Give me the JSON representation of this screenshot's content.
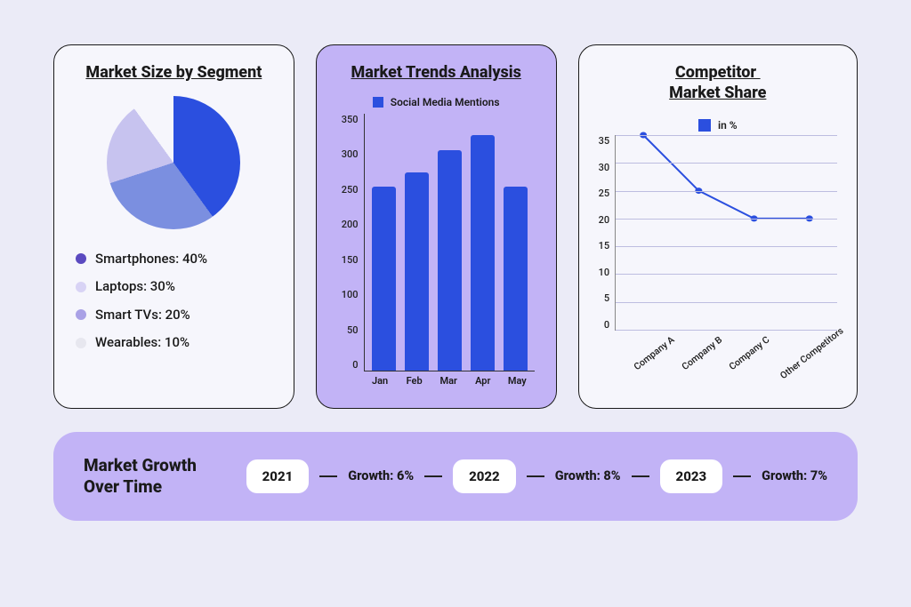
{
  "page_background": "#ebebf7",
  "pie_card": {
    "title": "Market Size by Segment",
    "background": "#f6f6fc",
    "chart": {
      "type": "pie",
      "start_angle_deg": 0,
      "slices": [
        {
          "label": "Smartphones",
          "value": 40,
          "color": "#2b4fdf"
        },
        {
          "label": "Laptops",
          "value": 30,
          "color": "#7b8fe0"
        },
        {
          "label": "Smart TVs",
          "value": 20,
          "color": "#c7c3ef"
        },
        {
          "label": "Wearables",
          "value": 10,
          "color": "#f6f6fc"
        }
      ],
      "legend_bullet_colors": [
        "#5b4ac0",
        "#d8d3f5",
        "#a9a1e6",
        "#e7e7ef"
      ],
      "legend_items": [
        "Smartphones: 40%",
        "Laptops: 30%",
        "Smart TVs: 20%",
        "Wearables: 10%"
      ]
    }
  },
  "bar_card": {
    "title": "Market Trends Analysis",
    "background": "#c2b3f6",
    "legend_label": "Social Media Mentions",
    "legend_color": "#2b4fdf",
    "chart": {
      "type": "bar",
      "categories": [
        "Jan",
        "Feb",
        "Mar",
        "Apr",
        "May"
      ],
      "values": [
        250,
        270,
        300,
        320,
        250
      ],
      "bar_color": "#2b4fdf",
      "ylim": [
        0,
        350
      ],
      "ytick_step": 50,
      "yticks": [
        "350",
        "300",
        "250",
        "200",
        "150",
        "100",
        "50",
        "0"
      ],
      "axis_color": "#333333",
      "label_fontsize": 11
    }
  },
  "line_card": {
    "title": "Competitor Market Share",
    "title_html": "Competitor ",
    "title_line2": "Market Share",
    "background": "#f6f6fc",
    "legend_label": "in %",
    "legend_color": "#2b4fdf",
    "chart": {
      "type": "line",
      "categories": [
        "Company A",
        "Company B",
        "Company C",
        "Other Competitors"
      ],
      "values": [
        35,
        25,
        20,
        20
      ],
      "ylim": [
        0,
        35
      ],
      "ytick_step": 5,
      "yticks": [
        "35",
        "30",
        "25",
        "20",
        "15",
        "10",
        "5",
        "0"
      ],
      "line_color": "#2b4fdf",
      "line_width": 2,
      "marker_color": "#2b4fdf",
      "marker_radius": 3,
      "grid_color": "#bdbde0",
      "axis_color": "#888888"
    }
  },
  "timeline_card": {
    "title": "Market Growth Over Time",
    "background": "#c2b3f6",
    "items": [
      {
        "year": "2021",
        "growth_label": "Growth: 6%"
      },
      {
        "year": "2022",
        "growth_label": "Growth: 8%"
      },
      {
        "year": "2023",
        "growth_label": "Growth: 7%"
      }
    ]
  }
}
